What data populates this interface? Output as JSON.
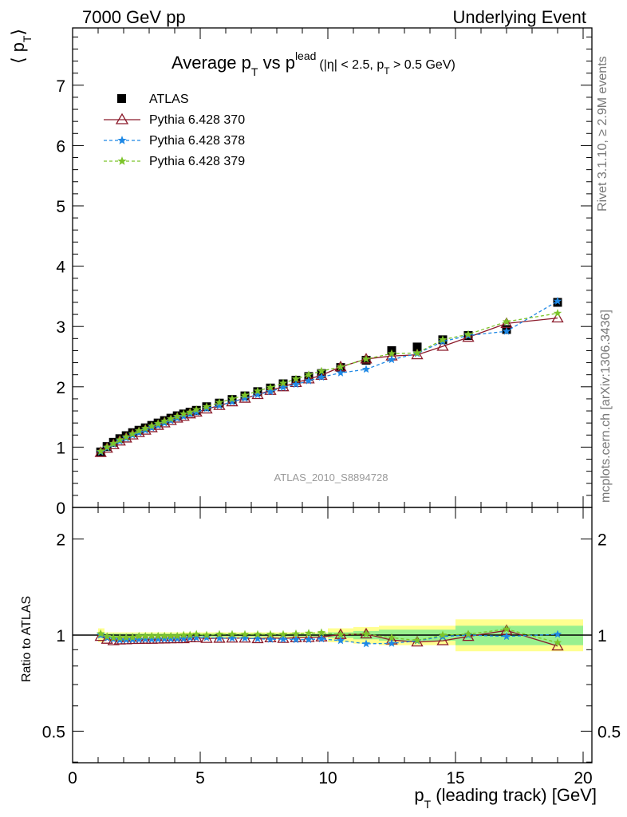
{
  "header": {
    "left": "7000 GeV pp",
    "right": "Underlying Event"
  },
  "side_labels": {
    "rivet": "Rivet 3.1.10, ≥ 2.9M events",
    "mcplots": "mcplots.cern.ch [arXiv:1306.3436]"
  },
  "analysis_id": "ATLAS_2010_S8894728",
  "chart_data": [
    {
      "type": "scatter",
      "title_main": "Average p",
      "title_sub_T": "T",
      "title_vs": " vs p",
      "title_sup": "lead",
      "title_cut": "(|η| < 2.5, p",
      "title_cut_T": "T",
      "title_cut_end": " > 0.5 GeV)",
      "ylabel": "⟨ p",
      "ylabel_sub": "T",
      "ylabel_end": "⟩",
      "xlim": [
        0,
        20
      ],
      "ylim": [
        0,
        8
      ],
      "yticks": [
        "0",
        "1",
        "2",
        "3",
        "4",
        "5",
        "6",
        "7"
      ],
      "x": [
        1.1,
        1.35,
        1.6,
        1.85,
        2.1,
        2.35,
        2.6,
        2.85,
        3.1,
        3.35,
        3.6,
        3.85,
        4.1,
        4.35,
        4.6,
        4.85,
        5.25,
        5.75,
        6.25,
        6.75,
        7.25,
        7.75,
        8.25,
        8.75,
        9.25,
        9.75,
        10.5,
        11.5,
        12.5,
        13.5,
        14.5,
        15.5,
        17.0,
        19.0
      ],
      "series": [
        {
          "name": "ATLAS",
          "color": "#000000",
          "marker": "square",
          "values": [
            0.92,
            1.01,
            1.08,
            1.14,
            1.19,
            1.24,
            1.28,
            1.32,
            1.36,
            1.4,
            1.44,
            1.48,
            1.52,
            1.55,
            1.58,
            1.61,
            1.67,
            1.73,
            1.79,
            1.85,
            1.92,
            1.98,
            2.05,
            2.11,
            2.17,
            2.22,
            2.32,
            2.44,
            2.6,
            2.66,
            2.78,
            2.85,
            2.95,
            3.4
          ]
        },
        {
          "name": "Pythia 6.428 370",
          "color": "#8b1a2a",
          "marker": "triangle",
          "values": [
            0.91,
            0.98,
            1.04,
            1.1,
            1.15,
            1.2,
            1.24,
            1.28,
            1.32,
            1.36,
            1.4,
            1.44,
            1.48,
            1.51,
            1.55,
            1.58,
            1.63,
            1.69,
            1.75,
            1.81,
            1.87,
            1.94,
            2.0,
            2.07,
            2.13,
            2.19,
            2.33,
            2.46,
            2.51,
            2.53,
            2.67,
            2.82,
            3.05,
            3.14
          ]
        },
        {
          "name": "Pythia 6.428 378",
          "color": "#1e88e5",
          "marker": "star",
          "values": [
            0.92,
            0.99,
            1.05,
            1.1,
            1.15,
            1.2,
            1.24,
            1.28,
            1.32,
            1.36,
            1.4,
            1.44,
            1.48,
            1.51,
            1.55,
            1.58,
            1.64,
            1.69,
            1.75,
            1.81,
            1.87,
            1.92,
            1.99,
            2.04,
            2.1,
            2.16,
            2.23,
            2.29,
            2.45,
            2.55,
            2.75,
            2.85,
            2.92,
            3.42
          ]
        },
        {
          "name": "Pythia 6.428 379",
          "color": "#7cc42a",
          "marker": "star",
          "values": [
            0.93,
            1.0,
            1.06,
            1.12,
            1.17,
            1.22,
            1.27,
            1.31,
            1.35,
            1.39,
            1.43,
            1.47,
            1.51,
            1.55,
            1.58,
            1.62,
            1.67,
            1.74,
            1.8,
            1.86,
            1.93,
            1.99,
            2.06,
            2.13,
            2.2,
            2.26,
            2.33,
            2.46,
            2.55,
            2.56,
            2.78,
            2.87,
            3.08,
            3.22
          ]
        }
      ]
    },
    {
      "type": "scatter",
      "ylabel": "Ratio to ATLAS",
      "xlabel": "p",
      "xlabel_sub": "T",
      "xlabel_end": " (leading track) [GeV]",
      "xlim": [
        0,
        20
      ],
      "xticks": [
        "0",
        "5",
        "10",
        "15",
        "20"
      ],
      "ylim": [
        0.4,
        2.4
      ],
      "yscale": "log",
      "yticks": [
        "0.5",
        "1",
        "2"
      ],
      "bands": {
        "x_edges": [
          1.0,
          1.25,
          1.5,
          10.0,
          11.0,
          12.0,
          13.0,
          14.0,
          15.0,
          16.0,
          18.0,
          20.0
        ],
        "yellow_lo": [
          0.95,
          0.98,
          0.98,
          0.95,
          0.94,
          0.93,
          0.93,
          0.93,
          0.89,
          0.89,
          0.89
        ],
        "yellow_hi": [
          1.05,
          1.02,
          1.02,
          1.05,
          1.06,
          1.07,
          1.07,
          1.07,
          1.12,
          1.12,
          1.12
        ],
        "green_lo": [
          0.98,
          0.99,
          0.99,
          0.98,
          0.97,
          0.96,
          0.96,
          0.96,
          0.93,
          0.93,
          0.93
        ],
        "green_hi": [
          1.02,
          1.01,
          1.01,
          1.02,
          1.03,
          1.04,
          1.04,
          1.04,
          1.07,
          1.07,
          1.07
        ]
      },
      "series": [
        {
          "name": "Pythia 6.428 370",
          "color": "#8b1a2a",
          "marker": "triangle",
          "values": [
            0.99,
            0.97,
            0.96,
            0.965,
            0.966,
            0.968,
            0.969,
            0.97,
            0.97,
            0.971,
            0.972,
            0.973,
            0.974,
            0.974,
            0.981,
            0.981,
            0.976,
            0.977,
            0.978,
            0.978,
            0.974,
            0.98,
            0.976,
            0.981,
            0.982,
            0.986,
            1.004,
            1.008,
            0.965,
            0.951,
            0.96,
            0.99,
            1.034,
            0.924
          ]
        },
        {
          "name": "Pythia 6.428 378",
          "color": "#1e88e5",
          "marker": "star",
          "values": [
            1.0,
            0.98,
            0.972,
            0.965,
            0.966,
            0.968,
            0.969,
            0.97,
            0.97,
            0.971,
            0.972,
            0.973,
            0.974,
            0.974,
            0.981,
            0.981,
            0.982,
            0.977,
            0.978,
            0.978,
            0.974,
            0.97,
            0.971,
            0.967,
            0.968,
            0.973,
            0.961,
            0.939,
            0.942,
            0.959,
            0.99,
            1.0,
            0.99,
            1.006
          ]
        },
        {
          "name": "Pythia 6.428 379",
          "color": "#7cc42a",
          "marker": "star",
          "values": [
            1.01,
            0.99,
            0.981,
            0.982,
            0.983,
            0.984,
            0.992,
            0.992,
            0.993,
            0.993,
            0.993,
            0.993,
            0.993,
            1.0,
            1.0,
            1.006,
            1.0,
            1.006,
            1.006,
            1.005,
            1.005,
            1.005,
            1.005,
            1.009,
            1.014,
            1.018,
            1.004,
            1.008,
            0.981,
            0.962,
            1.0,
            1.007,
            1.044,
            0.947
          ]
        }
      ]
    }
  ]
}
